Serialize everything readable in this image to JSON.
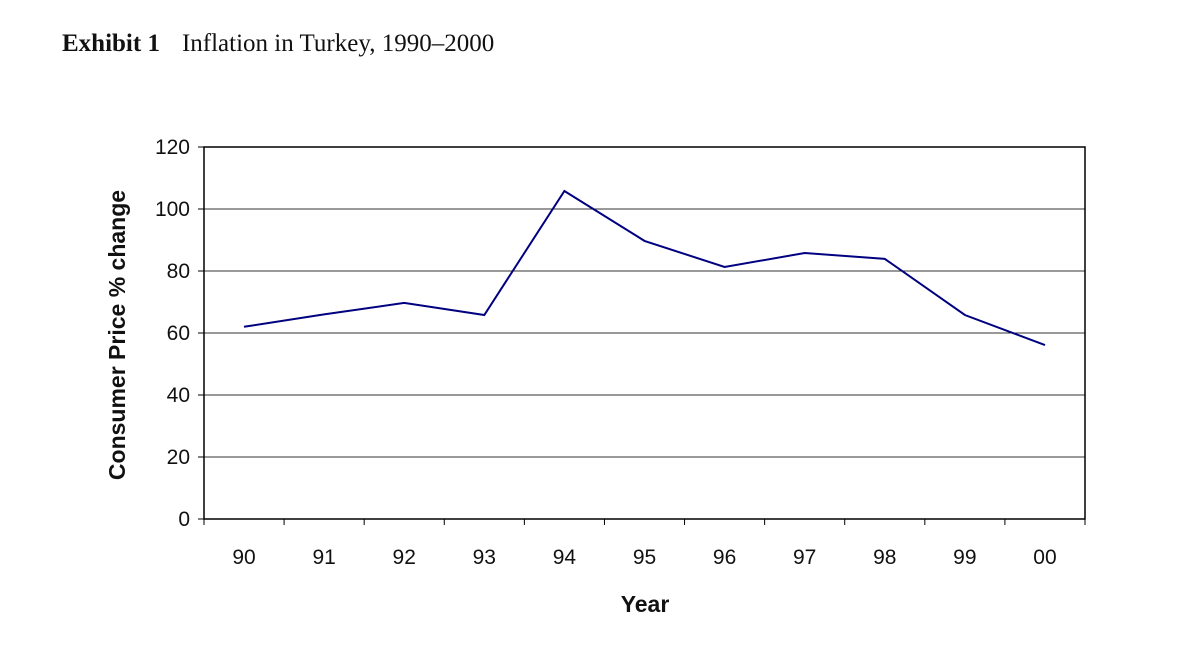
{
  "header": {
    "exhibit_label": "Exhibit 1",
    "title": "Inflation in Turkey, 1990–2000"
  },
  "chart_data": {
    "type": "line",
    "title": "Inflation in Turkey, 1990–2000",
    "xlabel": "Year",
    "ylabel": "Consumer Price % change",
    "categories": [
      "90",
      "91",
      "92",
      "93",
      "94",
      "95",
      "96",
      "97",
      "98",
      "99",
      "00"
    ],
    "series": [
      {
        "name": "Consumer Price % change",
        "color": "#000080",
        "values": [
          62,
          66,
          69.7,
          65.8,
          105.8,
          89.7,
          81.3,
          85.8,
          83.9,
          65.8,
          56.1
        ]
      }
    ],
    "yticks": [
      0,
      20,
      40,
      60,
      80,
      100,
      120
    ],
    "ylim": [
      0,
      120
    ],
    "grid": true,
    "legend": "none"
  }
}
